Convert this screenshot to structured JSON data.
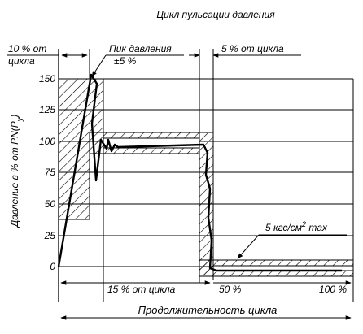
{
  "title": "Цикл пульсации давления",
  "y_axis_label": "Давление в % от PN(P",
  "y_axis_label_sub": "y",
  "y_axis_label_close": ")",
  "y_ticks": [
    "150",
    "125",
    "100",
    "75",
    "50",
    "25",
    "0"
  ],
  "annotations": {
    "ten_percent_line1": "10 % от",
    "ten_percent_line2": "цикла",
    "peak_line1": "Пик давления",
    "peak_line2": "±5 %",
    "five_percent": "5 % от цикла",
    "fifteen_percent": "15 % от цикла",
    "fifty_percent": "50 %",
    "hundred_percent": "100 %",
    "pressure_max_prefix": "5 кгс/см",
    "pressure_max_sup": "2",
    "pressure_max_suffix": " max",
    "cycle_duration": "Продолжительность цикла"
  }
}
